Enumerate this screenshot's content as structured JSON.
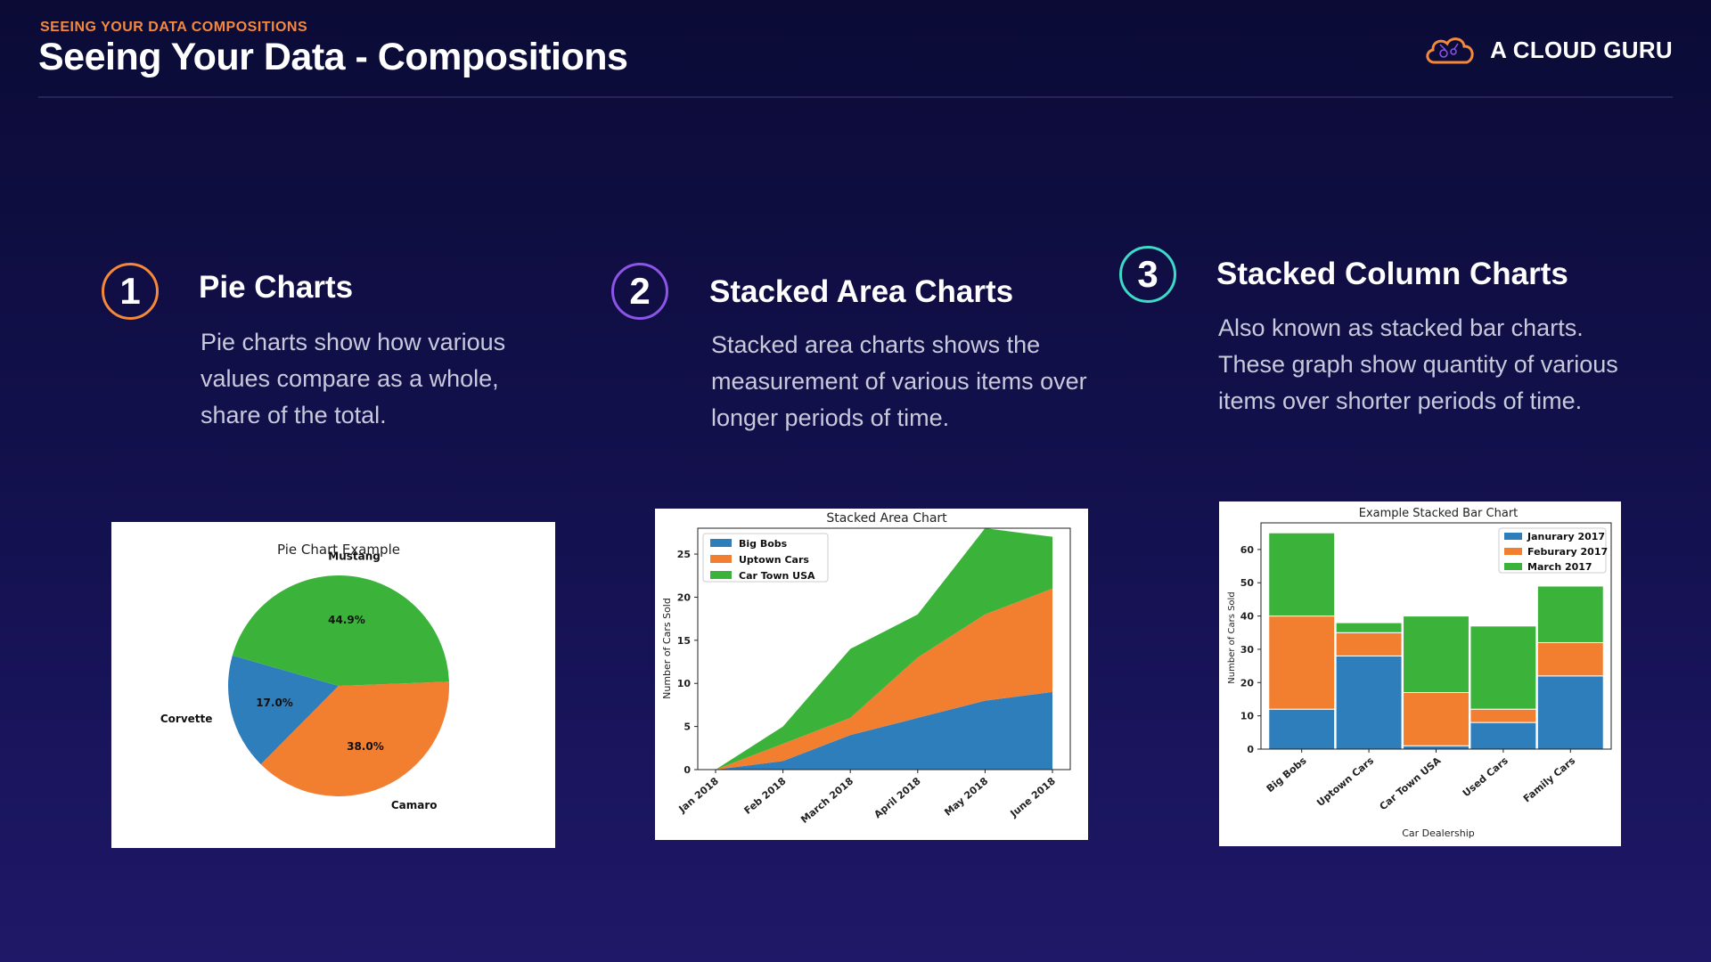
{
  "header": {
    "kicker": "SEEING YOUR DATA COMPOSITIONS",
    "title": "Seeing Your Data - Compositions",
    "logo_text": "A CLOUD GURU",
    "logo_icon": "cloud-icon"
  },
  "colors": {
    "accent_orange": "#f5883b",
    "accent_purple": "#8c55e8",
    "accent_teal": "#3dd9c9",
    "blue": "#2f7ebc",
    "orange": "#f27e30",
    "green": "#3bb33b"
  },
  "sections": [
    {
      "number": "1",
      "title": "Pie Charts",
      "lines": [
        "Pie charts show how various",
        "values compare as a whole,",
        "share of the total."
      ]
    },
    {
      "number": "2",
      "title": "Stacked Area Charts",
      "lines": [
        "Stacked area charts shows the",
        "measurement of various items over",
        "longer periods of time."
      ]
    },
    {
      "number": "3",
      "title": "Stacked Column Charts",
      "lines": [
        "Also known as stacked bar charts.",
        "These graph show quantity of various",
        "items over shorter periods of time."
      ]
    }
  ],
  "chart_data": [
    {
      "type": "pie",
      "title": "Pie Chart Example",
      "labels": [
        "Corvette",
        "Camaro",
        "Mustang"
      ],
      "values": [
        17.0,
        38.0,
        44.9
      ],
      "pct_labels": [
        "17.0%",
        "38.0%",
        "44.9%"
      ]
    },
    {
      "type": "area",
      "title": "Stacked Area Chart",
      "ylabel": "Number of Cars Sold",
      "xlabel": "",
      "categories": [
        "Jan 2018",
        "Feb 2018",
        "March 2018",
        "April 2018",
        "May 2018",
        "June 2018"
      ],
      "series": [
        {
          "name": "Big Bobs",
          "values": [
            0,
            1,
            4,
            6,
            8,
            9
          ]
        },
        {
          "name": "Uptown Cars",
          "values": [
            0,
            2,
            2,
            7,
            10,
            12
          ]
        },
        {
          "name": "Car Town USA",
          "values": [
            0,
            2,
            8,
            5,
            10,
            6
          ]
        }
      ],
      "ylim": [
        0,
        28
      ],
      "yticks": [
        "0",
        "5",
        "10",
        "15",
        "20",
        "25"
      ],
      "legend": "top-left"
    },
    {
      "type": "bar",
      "title": "Example Stacked Bar Chart",
      "ylabel": "Number of Cars Sold",
      "xlabel": "Car Dealership",
      "categories": [
        "Big Bobs",
        "Uptown Cars",
        "Car Town USA",
        "Used Cars",
        "Family Cars"
      ],
      "series": [
        {
          "name": "Janurary 2017",
          "values": [
            12,
            28,
            1,
            8,
            22
          ]
        },
        {
          "name": "Feburary 2017",
          "values": [
            28,
            7,
            16,
            4,
            10
          ]
        },
        {
          "name": "March 2017",
          "values": [
            25,
            3,
            23,
            25,
            17
          ]
        }
      ],
      "ylim": [
        0,
        68
      ],
      "yticks": [
        "0",
        "10",
        "20",
        "30",
        "40",
        "50",
        "60"
      ],
      "legend": "top-right"
    }
  ]
}
